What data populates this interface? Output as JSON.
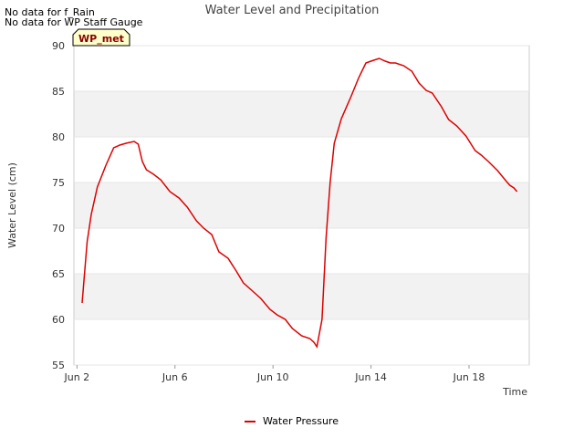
{
  "notes": [
    "No data for f_Rain",
    "No data for WP Staff Gauge"
  ],
  "badge": "WP_met",
  "colors": {
    "series": "#dd0000",
    "band": "#f2f2f2",
    "badge_bg": "#ffffcc"
  },
  "chart_data": {
    "type": "line",
    "title": "Water Level and Precipitation",
    "xlabel": "Time",
    "ylabel": "Water Level (cm)",
    "xlim": [
      "2024-06-01T21:00",
      "2024-06-20T11:00"
    ],
    "ylim": [
      55,
      90
    ],
    "yticks": [
      55,
      60,
      65,
      70,
      75,
      80,
      85,
      90
    ],
    "xticks": [
      {
        "x": "2024-06-02T00:00",
        "label": "Jun 2"
      },
      {
        "x": "2024-06-06T00:00",
        "label": "Jun 6"
      },
      {
        "x": "2024-06-10T00:00",
        "label": "Jun 10"
      },
      {
        "x": "2024-06-14T00:00",
        "label": "Jun 14"
      },
      {
        "x": "2024-06-18T00:00",
        "label": "Jun 18"
      }
    ],
    "grid": "horizontal bands",
    "legend_position": "bottom-center",
    "series": [
      {
        "name": "Water Pressure",
        "x": [
          "2024-06-02T05:00",
          "2024-06-02T10:00",
          "2024-06-02T14:00",
          "2024-06-02T20:00",
          "2024-06-03T04:00",
          "2024-06-03T12:00",
          "2024-06-03T18:00",
          "2024-06-04T00:00",
          "2024-06-04T08:00",
          "2024-06-04T12:00",
          "2024-06-04T16:00",
          "2024-06-04T20:00",
          "2024-06-05T03:00",
          "2024-06-05T10:00",
          "2024-06-05T19:00",
          "2024-06-06T04:00",
          "2024-06-06T12:00",
          "2024-06-06T21:00",
          "2024-06-07T04:00",
          "2024-06-07T12:00",
          "2024-06-07T19:00",
          "2024-06-08T04:00",
          "2024-06-08T12:00",
          "2024-06-08T19:00",
          "2024-06-09T04:00",
          "2024-06-09T12:00",
          "2024-06-09T21:00",
          "2024-06-10T04:00",
          "2024-06-10T12:00",
          "2024-06-10T19:00",
          "2024-06-11T04:00",
          "2024-06-11T12:00",
          "2024-06-11T16:00",
          "2024-06-11T19:00",
          "2024-06-12T00:00",
          "2024-06-12T04:00",
          "2024-06-12T08:00",
          "2024-06-12T12:00",
          "2024-06-12T19:00",
          "2024-06-13T04:00",
          "2024-06-13T12:00",
          "2024-06-13T19:00",
          "2024-06-14T00:00",
          "2024-06-14T08:00",
          "2024-06-14T14:00",
          "2024-06-14T19:00",
          "2024-06-15T00:00",
          "2024-06-15T08:00",
          "2024-06-15T16:00",
          "2024-06-15T23:00",
          "2024-06-16T06:00",
          "2024-06-16T12:00",
          "2024-06-16T21:00",
          "2024-06-17T04:00",
          "2024-06-17T12:00",
          "2024-06-17T21:00",
          "2024-06-18T06:00",
          "2024-06-18T12:00",
          "2024-06-18T19:00",
          "2024-06-19T04:00",
          "2024-06-19T12:00",
          "2024-06-19T16:00",
          "2024-06-19T20:00",
          "2024-06-19T23:00"
        ],
        "y": [
          61.8,
          68.5,
          71.5,
          74.5,
          76.8,
          78.8,
          79.1,
          79.3,
          79.5,
          79.2,
          77.3,
          76.4,
          75.9,
          75.3,
          74.0,
          73.3,
          72.3,
          70.8,
          70.0,
          69.3,
          67.4,
          66.7,
          65.3,
          64.0,
          63.1,
          62.3,
          61.1,
          60.5,
          60.0,
          59.0,
          58.2,
          57.9,
          57.5,
          57.0,
          60.0,
          69.0,
          75.0,
          79.3,
          82.0,
          84.3,
          86.5,
          88.1,
          88.3,
          88.6,
          88.3,
          88.1,
          88.1,
          87.8,
          87.2,
          85.9,
          85.1,
          84.8,
          83.3,
          81.9,
          81.2,
          80.1,
          78.5,
          78.0,
          77.3,
          76.3,
          75.2,
          74.7,
          74.4,
          74.0
        ]
      }
    ]
  }
}
